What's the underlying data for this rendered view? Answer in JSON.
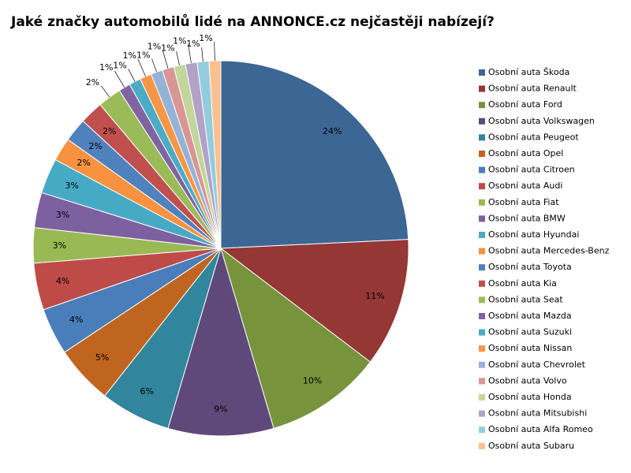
{
  "chart_data": {
    "type": "pie",
    "title": "Jaké značky automobilů lidé na ANNONCE.cz nejčastěji nabízejí?",
    "categories": [
      "Osobní auta Škoda",
      "Osobní auta Renault",
      "Osobní auta Ford",
      "Osobní auta Volkswagen",
      "Osobní auta Peugeot",
      "Osobní auta Opel",
      "Osobní auta Citroen",
      "Osobní auta Audi",
      "Osobní auta Fiat",
      "Osobní auta BMW",
      "Osobní auta Hyundai",
      "Osobní auta Mercedes-Benz",
      "Osobní auta Toyota",
      "Osobní auta Kia",
      "Osobní auta Seat",
      "Osobní auta Mazda",
      "Osobní auta Suzuki",
      "Osobní auta Nissan",
      "Osobní auta Chevrolet",
      "Osobní auta Volvo",
      "Osobní auta Honda",
      "Osobní auta Mitsubishi",
      "Osobní auta Alfa Romeo",
      "Osobní auta Subaru"
    ],
    "values": [
      24,
      11,
      10,
      9,
      6,
      5,
      4,
      4,
      3,
      3,
      3,
      2,
      2,
      2,
      2,
      1,
      1,
      1,
      1,
      1,
      1,
      1,
      1,
      1
    ],
    "value_labels": [
      "24%",
      "11%",
      "10%",
      "9%",
      "6%",
      "5%",
      "4%",
      "4%",
      "3%",
      "3%",
      "3%",
      "2%",
      "2%",
      "2%",
      "2%",
      "1%",
      "1%",
      "1%",
      "1%",
      "1%",
      "1%",
      "1%",
      "1%",
      "1%"
    ],
    "colors": [
      "#3C6694",
      "#953735",
      "#77933C",
      "#5F497A",
      "#31859C",
      "#C0651F",
      "#4A7EBB",
      "#BE4B48",
      "#98B954",
      "#7D60A0",
      "#46AAC5",
      "#F69240",
      "#4F81BD",
      "#C0504D",
      "#9BBB59",
      "#8064A2",
      "#4BACC6",
      "#F79646",
      "#95B3D7",
      "#D99694",
      "#C3D69B",
      "#B3A2C7",
      "#93CDDD",
      "#FAC090"
    ],
    "legend": "right"
  }
}
